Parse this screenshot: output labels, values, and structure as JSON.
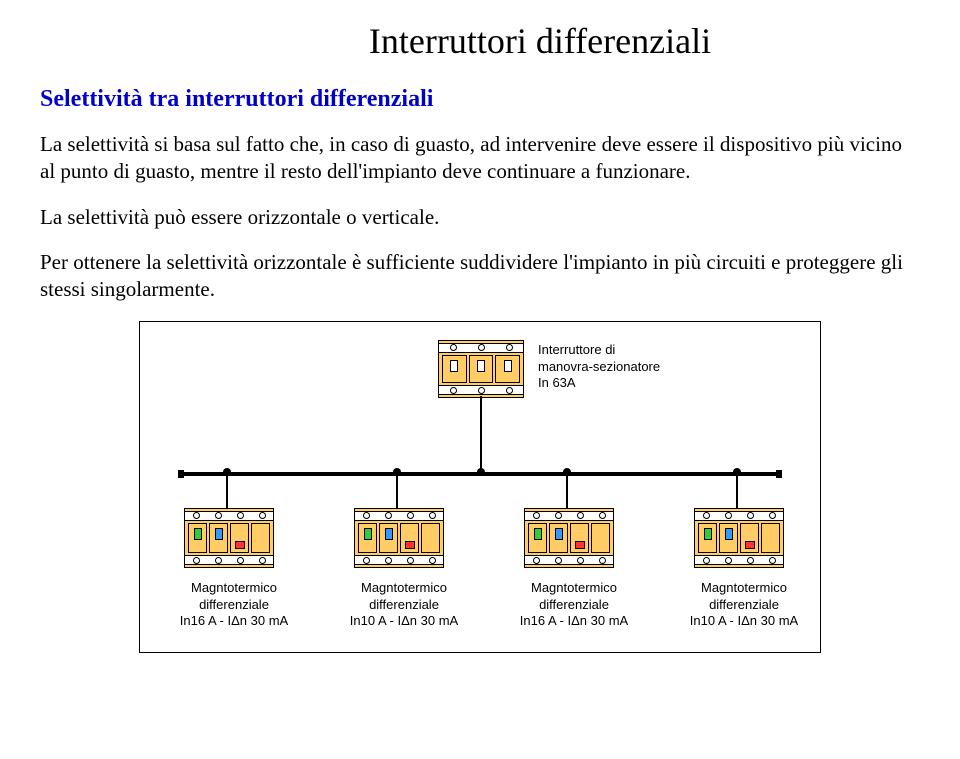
{
  "title": "Interruttori differenziali",
  "subtitle": "Selettività tra interruttori differenziali",
  "paragraphs": {
    "p1": "La selettività si basa sul fatto che, in caso di guasto, ad intervenire deve essere il dispositivo più vicino al punto di guasto, mentre il resto dell'impianto deve continuare a funzionare.",
    "p2": "La selettività può essere orizzontale o verticale.",
    "p3": "Per ottenere la selettività orizzontale è sufficiente suddividere l'impianto in più circuiti e proteggere gli stessi singolarmente."
  },
  "diagram": {
    "colors": {
      "module_body": "#ffcc66",
      "border": "#000000",
      "background": "#ffffff",
      "switch_green": "#33cc33",
      "switch_blue": "#3399ff",
      "test_red": "#ff3333"
    },
    "main_breaker": {
      "label_l1": "Interruttore di",
      "label_l2": "manovra-sezionatore",
      "label_l3": "In 63A",
      "poles": 3
    },
    "sub_breakers": [
      {
        "label_l1": "Magntotermico",
        "label_l2": "differenziale",
        "label_l3": "In16 A - IΔn  30 mA"
      },
      {
        "label_l1": "Magntotermico",
        "label_l2": "differenziale",
        "label_l3": "In10 A - IΔn  30 mA"
      },
      {
        "label_l1": "Magntotermico",
        "label_l2": "differenziale",
        "label_l3": "In16 A - IΔn  30 mA"
      },
      {
        "label_l1": "Magntotermico",
        "label_l2": "differenziale",
        "label_l3": "In10 A - IΔn  30 mA"
      }
    ]
  }
}
